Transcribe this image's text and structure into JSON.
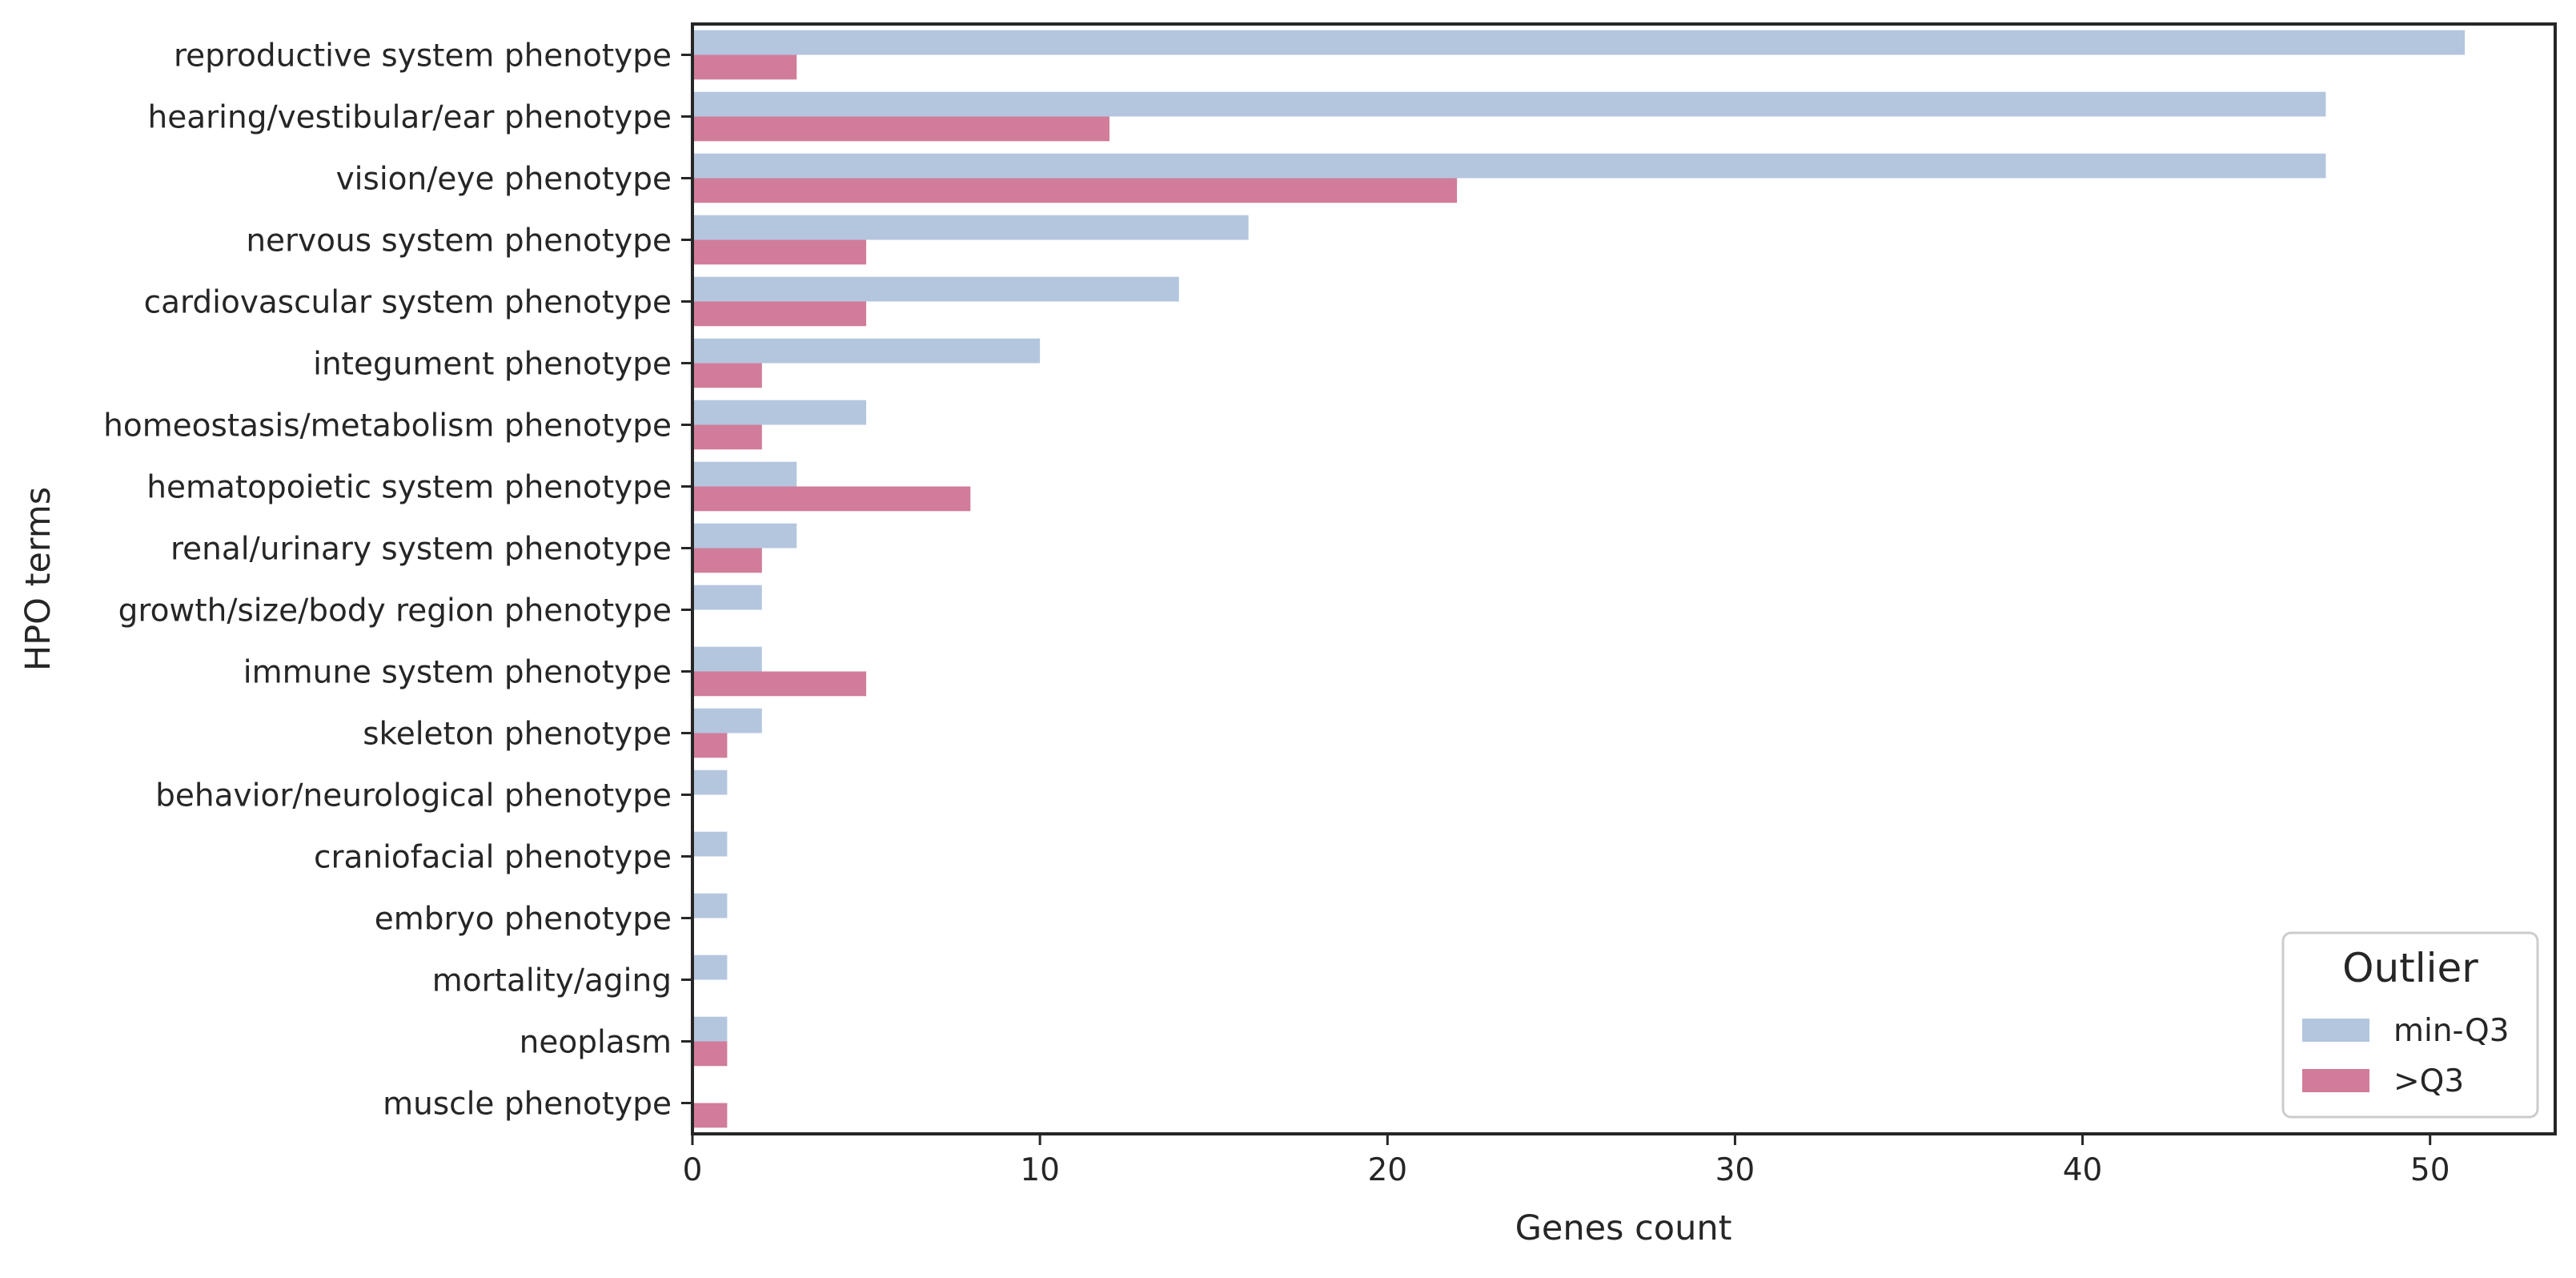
{
  "chart_data": {
    "type": "bar",
    "orientation": "horizontal",
    "categories": [
      "reproductive system phenotype",
      "hearing/vestibular/ear phenotype",
      "vision/eye phenotype",
      "nervous system phenotype",
      "cardiovascular system phenotype",
      "integument phenotype",
      "homeostasis/metabolism phenotype",
      "hematopoietic system phenotype",
      "renal/urinary system phenotype",
      "growth/size/body region phenotype",
      "immune system phenotype",
      "skeleton phenotype",
      "behavior/neurological phenotype",
      "craniofacial phenotype",
      "embryo phenotype",
      "mortality/aging",
      "neoplasm",
      "muscle phenotype"
    ],
    "series": [
      {
        "name": "min-Q3",
        "color": "#b4c6de",
        "values": [
          51,
          47,
          47,
          16,
          14,
          10,
          5,
          3,
          3,
          2,
          2,
          2,
          1,
          1,
          1,
          1,
          1,
          0
        ]
      },
      {
        "name": ">Q3",
        "color": "#d17c9a",
        "values": [
          3,
          12,
          22,
          5,
          5,
          2,
          2,
          8,
          2,
          0,
          5,
          1,
          0,
          0,
          0,
          0,
          1,
          1
        ]
      }
    ],
    "xlabel": "Genes count",
    "ylabel": "HPO terms",
    "xlim": [
      0,
      53.6
    ],
    "xticks": [
      0,
      10,
      20,
      30,
      40,
      50
    ],
    "grid": false,
    "legend": {
      "title": "Outlier",
      "position": "lower-right"
    }
  }
}
